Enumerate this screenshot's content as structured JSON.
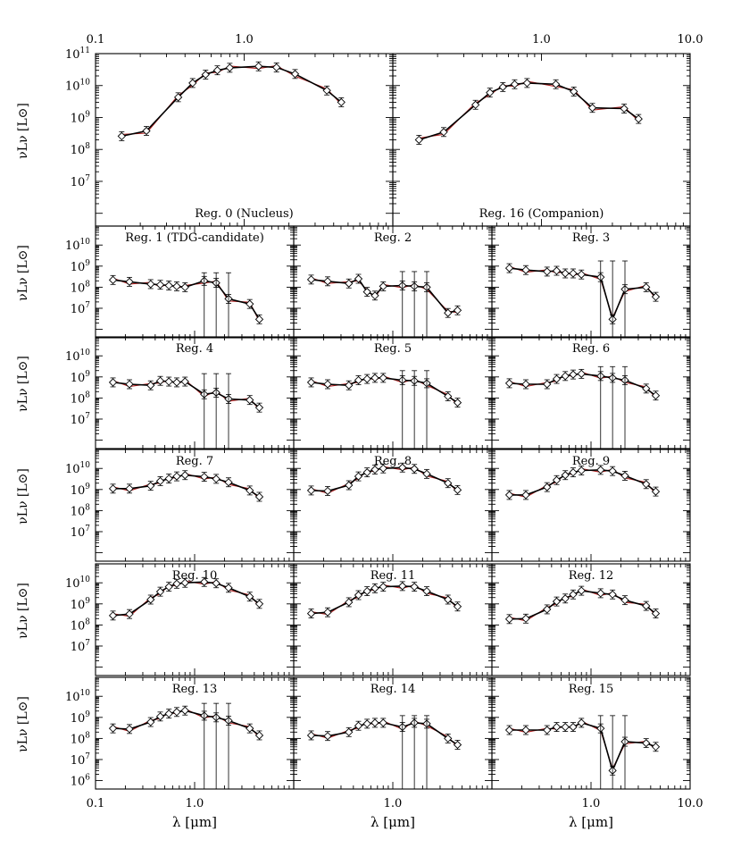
{
  "chart_data": {
    "type": "scatter",
    "x_scale": "log",
    "y_scale": "log",
    "xlim": [
      0.1,
      10.0
    ],
    "ylim": [
      1000000.0,
      100000000000.0
    ],
    "xlabel": "λ [μm]",
    "ylabel": "νL_ν [L⊙]",
    "x_tick_labels": [
      "0.1",
      "1.0",
      "10.0"
    ],
    "y_tick_labels": [
      "10^6",
      "10^7",
      "10^8",
      "10^9",
      "10^10",
      "10^11"
    ],
    "series_colors": {
      "model": "#000000",
      "alt_model": "#b22222",
      "data": "#000000"
    },
    "panels": [
      {
        "id": "0",
        "label": "Reg. 0 (Nucleus)",
        "x": [
          0.15,
          0.22,
          0.36,
          0.45,
          0.55,
          0.66,
          0.8,
          1.25,
          1.65,
          2.2,
          3.6,
          4.5
        ],
        "y": [
          260000000.0,
          380000000.0,
          4300000000.0,
          12000000000.0,
          22000000000.0,
          30000000000.0,
          36000000000.0,
          40000000000.0,
          37000000000.0,
          23000000000.0,
          7000000000.0,
          3000000000.0
        ]
      },
      {
        "id": "16",
        "label": "Reg. 16 (Companion)",
        "x": [
          0.15,
          0.22,
          0.36,
          0.45,
          0.55,
          0.66,
          0.8,
          1.25,
          1.65,
          2.2,
          3.6,
          4.5
        ],
        "y": [
          200000000.0,
          350000000.0,
          2500000000.0,
          6000000000.0,
          9000000000.0,
          11000000000.0,
          12000000000.0,
          11000000000.0,
          6500000000.0,
          2000000000.0,
          1900000000.0,
          900000000.0
        ]
      },
      {
        "id": "1",
        "label": "Reg. 1 (TDG-candidate)",
        "x": [
          0.15,
          0.22,
          0.36,
          0.45,
          0.55,
          0.66,
          0.8,
          1.25,
          1.65,
          2.2,
          3.6,
          4.5
        ],
        "y": [
          220000000.0,
          180000000.0,
          140000000.0,
          130000000.0,
          120000000.0,
          110000000.0,
          100000000.0,
          200000000.0,
          160000000.0,
          28000000.0,
          16000000.0,
          3000000.0
        ]
      },
      {
        "id": "2",
        "label": "Reg. 2",
        "x": [
          0.15,
          0.22,
          0.36,
          0.45,
          0.55,
          0.66,
          0.8,
          1.25,
          1.65,
          2.2,
          3.6,
          4.5
        ],
        "y": [
          230000000.0,
          190000000.0,
          150000000.0,
          250000000.0,
          60000000.0,
          40000000.0,
          110000000.0,
          120000000.0,
          110000000.0,
          100000000.0,
          6000000.0,
          8000000.0
        ]
      },
      {
        "id": "3",
        "label": "Reg. 3",
        "x": [
          0.15,
          0.22,
          0.36,
          0.45,
          0.55,
          0.66,
          0.8,
          1.25,
          1.65,
          2.2,
          3.6,
          4.5
        ],
        "y": [
          800000000.0,
          650000000.0,
          550000000.0,
          600000000.0,
          450000000.0,
          450000000.0,
          400000000.0,
          300000000.0,
          3000000.0,
          80000000.0,
          100000000.0,
          35000000.0
        ]
      },
      {
        "id": "4",
        "label": "Reg. 4",
        "x": [
          0.15,
          0.22,
          0.36,
          0.45,
          0.55,
          0.66,
          0.8,
          1.25,
          1.65,
          2.2,
          3.6,
          4.5
        ],
        "y": [
          550000000.0,
          450000000.0,
          400000000.0,
          650000000.0,
          600000000.0,
          550000000.0,
          600000000.0,
          150000000.0,
          180000000.0,
          90000000.0,
          80000000.0,
          35000000.0
        ]
      },
      {
        "id": "5",
        "label": "Reg. 5",
        "x": [
          0.15,
          0.22,
          0.36,
          0.45,
          0.55,
          0.66,
          0.8,
          1.25,
          1.65,
          2.2,
          3.6,
          4.5
        ],
        "y": [
          550000000.0,
          450000000.0,
          400000000.0,
          700000000.0,
          800000000.0,
          900000000.0,
          900000000.0,
          700000000.0,
          650000000.0,
          500000000.0,
          120000000.0,
          60000000.0
        ]
      },
      {
        "id": "6",
        "label": "Reg. 6",
        "x": [
          0.15,
          0.22,
          0.36,
          0.45,
          0.55,
          0.66,
          0.8,
          1.25,
          1.65,
          2.2,
          3.6,
          4.5
        ],
        "y": [
          500000000.0,
          450000000.0,
          450000000.0,
          800000000.0,
          1100000000.0,
          1300000000.0,
          1400000000.0,
          1100000000.0,
          900000000.0,
          700000000.0,
          280000000.0,
          130000000.0
        ]
      },
      {
        "id": "7",
        "label": "Reg. 7",
        "x": [
          0.15,
          0.22,
          0.36,
          0.45,
          0.55,
          0.66,
          0.8,
          1.25,
          1.65,
          2.2,
          3.6,
          4.5
        ],
        "y": [
          1100000000.0,
          1100000000.0,
          1500000000.0,
          2500000000.0,
          3300000000.0,
          4200000000.0,
          4800000000.0,
          4000000000.0,
          3200000000.0,
          2200000000.0,
          900000000.0,
          450000000.0
        ]
      },
      {
        "id": "8",
        "label": "Reg. 8",
        "x": [
          0.15,
          0.22,
          0.36,
          0.45,
          0.55,
          0.66,
          0.8,
          1.25,
          1.65,
          2.2,
          3.6,
          4.5
        ],
        "y": [
          900000000.0,
          850000000.0,
          1600000000.0,
          4200000000.0,
          6500000000.0,
          8800000000.0,
          10000000000.0,
          11000000000.0,
          9500000000.0,
          5500000000.0,
          2000000000.0,
          950000000.0
        ]
      },
      {
        "id": "9",
        "label": "Reg. 9",
        "x": [
          0.15,
          0.22,
          0.36,
          0.45,
          0.55,
          0.66,
          0.8,
          1.25,
          1.65,
          2.2,
          3.6,
          4.5
        ],
        "y": [
          550000000.0,
          550000000.0,
          1300000000.0,
          2800000000.0,
          4800000000.0,
          6500000000.0,
          8000000000.0,
          8500000000.0,
          7500000000.0,
          4500000000.0,
          1800000000.0,
          800000000.0
        ]
      },
      {
        "id": "10",
        "label": "Reg. 10",
        "x": [
          0.15,
          0.22,
          0.36,
          0.45,
          0.55,
          0.66,
          0.8,
          1.25,
          1.65,
          2.2,
          3.6,
          4.5
        ],
        "y": [
          280000000.0,
          330000000.0,
          1600000000.0,
          3800000000.0,
          6500000000.0,
          9000000000.0,
          10000000000.0,
          11000000000.0,
          9500000000.0,
          5800000000.0,
          2200000000.0,
          1000000000.0
        ]
      },
      {
        "id": "11",
        "label": "Reg. 11",
        "x": [
          0.15,
          0.22,
          0.36,
          0.45,
          0.55,
          0.66,
          0.8,
          1.25,
          1.65,
          2.2,
          3.6,
          4.5
        ],
        "y": [
          350000000.0,
          400000000.0,
          1200000000.0,
          2600000000.0,
          4000000000.0,
          5500000000.0,
          6500000000.0,
          7000000000.0,
          6500000000.0,
          4000000000.0,
          1600000000.0,
          750000000.0
        ]
      },
      {
        "id": "12",
        "label": "Reg. 12",
        "x": [
          0.15,
          0.22,
          0.36,
          0.45,
          0.55,
          0.66,
          0.8,
          1.25,
          1.65,
          2.2,
          3.6,
          4.5
        ],
        "y": [
          190000000.0,
          200000000.0,
          550000000.0,
          1300000000.0,
          1800000000.0,
          2800000000.0,
          4200000000.0,
          3200000000.0,
          2800000000.0,
          1500000000.0,
          800000000.0,
          350000000.0
        ]
      },
      {
        "id": "13",
        "label": "Reg. 13",
        "x": [
          0.15,
          0.22,
          0.36,
          0.45,
          0.55,
          0.66,
          0.8,
          1.25,
          1.65,
          2.2,
          3.6,
          4.5
        ],
        "y": [
          300000000.0,
          280000000.0,
          600000000.0,
          1100000000.0,
          1500000000.0,
          1800000000.0,
          2100000000.0,
          1200000000.0,
          1000000000.0,
          700000000.0,
          300000000.0,
          140000000.0
        ]
      },
      {
        "id": "14",
        "label": "Reg. 14",
        "x": [
          0.15,
          0.22,
          0.36,
          0.45,
          0.55,
          0.66,
          0.8,
          1.25,
          1.65,
          2.2,
          3.6,
          4.5
        ],
        "y": [
          140000000.0,
          130000000.0,
          200000000.0,
          400000000.0,
          500000000.0,
          550000000.0,
          550000000.0,
          350000000.0,
          550000000.0,
          500000000.0,
          100000000.0,
          50000000.0
        ]
      },
      {
        "id": "15",
        "label": "Reg. 15",
        "x": [
          0.15,
          0.22,
          0.36,
          0.45,
          0.55,
          0.66,
          0.8,
          1.25,
          1.65,
          2.2,
          3.6,
          4.5
        ],
        "y": [
          250000000.0,
          250000000.0,
          250000000.0,
          350000000.0,
          350000000.0,
          350000000.0,
          550000000.0,
          300000000.0,
          3000000.0,
          70000000.0,
          60000000.0,
          40000000.0
        ]
      }
    ]
  }
}
